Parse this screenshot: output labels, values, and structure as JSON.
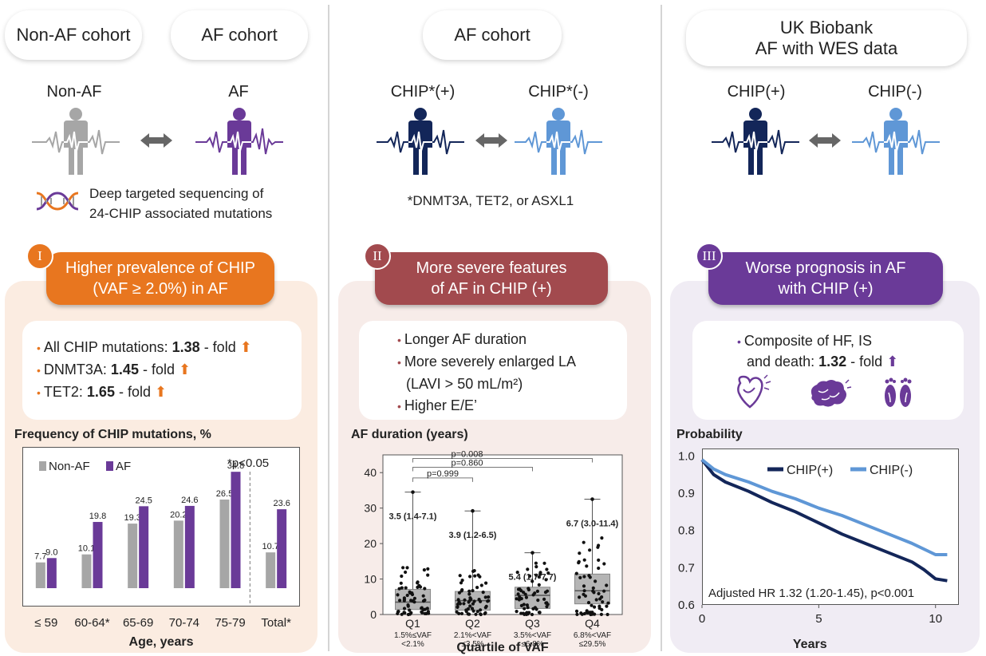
{
  "col1": {
    "pill_left": "Non-AF cohort",
    "pill_right": "AF cohort",
    "label_left": "Non-AF",
    "label_right": "AF",
    "seq_line1": "Deep targeted sequencing of",
    "seq_line2": "24-CHIP associated mutations",
    "badge": "I",
    "banner_line1": "Higher prevalence of CHIP",
    "banner_line2": "(VAF ≥ 2.0%) in AF",
    "bullets": [
      {
        "prefix": "All CHIP mutations: ",
        "value": "1.38",
        "suffix": " - fold"
      },
      {
        "prefix": "DNMT3A: ",
        "value": "1.45",
        "suffix": " - fold"
      },
      {
        "prefix": "TET2: ",
        "value": "1.65",
        "suffix": " - fold"
      }
    ],
    "colors": {
      "accent": "#e8761f",
      "panel": "#fbece1",
      "non_af": "#a6a6a6",
      "af": "#6a3a98"
    }
  },
  "col2": {
    "pill": "AF cohort",
    "label_left": "CHIP*(+)",
    "label_right": "CHIP*(-)",
    "footnote": "*DNMT3A, TET2, or ASXL1",
    "badge": "II",
    "banner_line1": "More severe features",
    "banner_line2": "of AF in CHIP (+)",
    "bullets": [
      "Longer AF duration",
      "More severely enlarged LA",
      "(LAVI > 50 mL/m²)",
      "Higher E/E’"
    ],
    "colors": {
      "accent": "#a24a4e",
      "panel": "#f7ece9",
      "pos": "#132659",
      "neg": "#5f97d6"
    }
  },
  "col3": {
    "pill_line1": "UK Biobank",
    "pill_line2": "AF with WES data",
    "label_left": "CHIP(+)",
    "label_right": "CHIP(-)",
    "badge": "III",
    "banner_line1": "Worse prognosis in AF",
    "banner_line2": "with CHIP (+)",
    "bullet_line1": "Composite of HF, IS",
    "bullet_line2_prefix": "and death: ",
    "bullet_value": "1.32",
    "bullet_suffix": " - fold",
    "icons": [
      "heart-icon",
      "brain-icon",
      "footprints-icon"
    ],
    "colors": {
      "accent": "#6a3a98",
      "panel": "#f0ecf4",
      "pos": "#132659",
      "neg": "#5f97d6"
    }
  },
  "chart_data": [
    {
      "type": "bar",
      "title": "Frequency of CHIP mutations, %",
      "xlabel": "Age, years",
      "categories": [
        "≤ 59",
        "60-64*",
        "65-69",
        "70-74",
        "75-79",
        "Total*"
      ],
      "series": [
        {
          "name": "Non-AF",
          "values": [
            7.7,
            10.1,
            19.3,
            20.2,
            26.5,
            10.7
          ],
          "color": "#a6a6a6"
        },
        {
          "name": "AF",
          "values": [
            9.0,
            19.8,
            24.5,
            24.6,
            34.8,
            23.6
          ],
          "color": "#6a3a98"
        }
      ],
      "value_labels": {
        "Non-AF": [
          "7.7",
          "10.1",
          "19.3",
          "20.2",
          "26.5",
          "10.7"
        ],
        "AF": [
          "9.0",
          "19.8",
          "24.5",
          "24.6",
          "34.8",
          "23.6"
        ]
      },
      "annotation": "*p<0.05",
      "ylim": [
        0,
        42
      ],
      "legend_position": "top-left"
    },
    {
      "type": "box",
      "title": "AF duration (years)",
      "xlabel": "Quartile of VAF",
      "categories": [
        "Q1",
        "Q2",
        "Q3",
        "Q4"
      ],
      "sublabels": [
        [
          "1.5%≤VAF",
          "<2.1%"
        ],
        [
          "2.1%<VAF",
          "≤3.5%"
        ],
        [
          "3.5%<VAF",
          "≤6.8%"
        ],
        [
          "6.8%<VAF",
          "≤29.5%"
        ]
      ],
      "boxes": [
        {
          "median": 3.5,
          "q1": 1.4,
          "q3": 7.1,
          "max": 34.5,
          "label": "3.5 (1.4-7.1)"
        },
        {
          "median": 3.9,
          "q1": 1.2,
          "q3": 6.5,
          "max": 29.2,
          "label": "3.9 (1.2-6.5)"
        },
        {
          "median": 5.4,
          "q1": 1.7,
          "q3": 7.7,
          "max": 17.4,
          "label": "5.4 (1.7-7.7)"
        },
        {
          "median": 6.7,
          "q1": 3.0,
          "q3": 11.4,
          "max": 32.5,
          "label": "6.7 (3.0-11.4)"
        }
      ],
      "comparisons": [
        {
          "from": "Q1",
          "to": "Q2",
          "p": "p=0.999"
        },
        {
          "from": "Q1",
          "to": "Q3",
          "p": "p=0.860"
        },
        {
          "from": "Q1",
          "to": "Q4",
          "p": "p=0.008"
        }
      ],
      "ylim": [
        0,
        45
      ],
      "yticks": [
        0,
        10,
        20,
        30,
        40
      ]
    },
    {
      "type": "line",
      "title": "Probability",
      "xlabel": "Years",
      "series": [
        {
          "name": "CHIP(+)",
          "color": "#132659",
          "x": [
            0,
            0.5,
            1,
            2,
            3,
            4,
            5,
            6,
            7,
            8,
            9,
            9.5,
            10,
            10.5
          ],
          "y": [
            0.99,
            0.95,
            0.93,
            0.905,
            0.875,
            0.85,
            0.82,
            0.79,
            0.765,
            0.74,
            0.715,
            0.695,
            0.67,
            0.665
          ]
        },
        {
          "name": "CHIP(-)",
          "color": "#5f97d6",
          "x": [
            0,
            0.5,
            1,
            2,
            3,
            4,
            5,
            6,
            7,
            8,
            9,
            9.5,
            10,
            10.5
          ],
          "y": [
            0.99,
            0.965,
            0.95,
            0.93,
            0.905,
            0.885,
            0.86,
            0.84,
            0.815,
            0.79,
            0.765,
            0.75,
            0.735,
            0.735
          ]
        }
      ],
      "xlim": [
        0,
        11
      ],
      "ylim": [
        0.6,
        1.02
      ],
      "xticks": [
        0,
        5,
        10
      ],
      "yticks": [
        0.6,
        0.7,
        0.8,
        0.9,
        1.0
      ],
      "ytick_labels": [
        "0.6",
        "0.7",
        "0.8",
        "0.9",
        "1.0"
      ],
      "annotation": "Adjusted HR 1.32 (1.20-1.45), p<0.001",
      "legend_position": "top-right"
    }
  ]
}
